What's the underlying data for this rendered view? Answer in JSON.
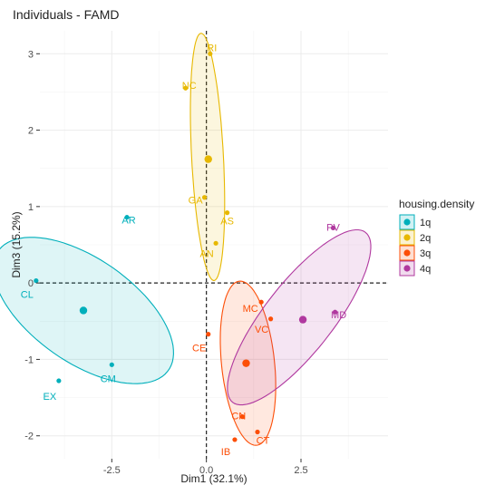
{
  "chart_data": {
    "type": "scatter",
    "title": "Individuals - FAMD",
    "xlabel": "Dim1 (32.1%)",
    "ylabel": "Dim3 (15.2%)",
    "xlim": [
      -4.4,
      4.8
    ],
    "ylim": [
      -2.3,
      3.3
    ],
    "x_ticks": [
      -2.5,
      0.0,
      2.5
    ],
    "x_tick_labels": [
      "-2.5",
      "0.0",
      "2.5"
    ],
    "y_ticks": [
      -2,
      -1,
      0,
      1,
      2,
      3
    ],
    "y_tick_labels": [
      "-2",
      "-1",
      "0",
      "1",
      "2",
      "3"
    ],
    "grid": true,
    "reference_lines": {
      "x": 0,
      "y": 0,
      "style": "dashed"
    },
    "legend": {
      "title": "housing.density",
      "placement": "right"
    },
    "series": [
      {
        "name": "1q",
        "color": "#00AFBB",
        "points": [
          {
            "label": "AR",
            "x": -2.1,
            "y": 0.86
          },
          {
            "label": "CL",
            "x": -4.5,
            "y": 0.03
          },
          {
            "label": "CM",
            "x": -2.5,
            "y": -1.07
          },
          {
            "label": "EX",
            "x": -3.9,
            "y": -1.28
          }
        ],
        "centroid": {
          "x": -3.25,
          "y": -0.36
        },
        "ellipse": {
          "cx": -3.25,
          "cy": -0.36,
          "rx": 1.37,
          "ry": 1.36,
          "angle": 55
        }
      },
      {
        "name": "2q",
        "color": "#E7B800",
        "points": [
          {
            "label": "RI",
            "x": 0.1,
            "y": 3.0
          },
          {
            "label": "NC",
            "x": -0.55,
            "y": 2.55
          },
          {
            "label": "GA",
            "x": -0.05,
            "y": 1.12
          },
          {
            "label": "AS",
            "x": 0.55,
            "y": 0.92
          },
          {
            "label": "AN",
            "x": 0.25,
            "y": 0.52
          }
        ],
        "centroid": {
          "x": 0.05,
          "y": 1.62
        },
        "ellipse": {
          "cx": 0.03,
          "cy": 1.65,
          "rx": 0.42,
          "ry": 1.62,
          "angle": 3
        }
      },
      {
        "name": "3q",
        "color": "#FC4E07",
        "points": [
          {
            "label": "MC",
            "x": 1.45,
            "y": -0.25
          },
          {
            "label": "VC",
            "x": 1.7,
            "y": -0.47
          },
          {
            "label": "CE",
            "x": 0.05,
            "y": -0.67
          },
          {
            "label": "CN",
            "x": 0.95,
            "y": -1.75
          },
          {
            "label": "IB",
            "x": 0.75,
            "y": -2.05
          },
          {
            "label": "CT",
            "x": 1.35,
            "y": -1.95
          }
        ],
        "centroid": {
          "x": 1.05,
          "y": -1.05
        },
        "ellipse": {
          "cx": 1.1,
          "cy": -1.05,
          "rx": 0.7,
          "ry": 1.08,
          "angle": 6
        }
      },
      {
        "name": "4q",
        "color": "#B0389F",
        "points": [
          {
            "label": "PV",
            "x": 3.35,
            "y": 0.72
          },
          {
            "label": "MD",
            "x": 3.4,
            "y": -0.38
          }
        ],
        "centroid": {
          "x": 2.55,
          "y": -0.48
        },
        "ellipse": {
          "cx": 2.45,
          "cy": -0.45,
          "rx": 2.85,
          "ry": 0.45,
          "angle": 52
        }
      }
    ]
  }
}
